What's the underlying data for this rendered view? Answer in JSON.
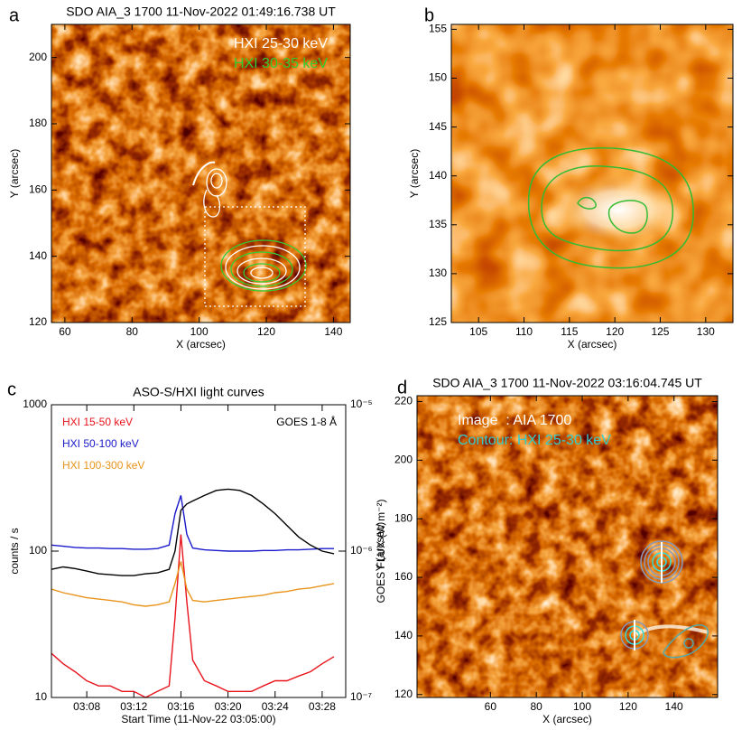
{
  "chart_data": [
    {
      "type": "image",
      "panel": "a",
      "title": "SDO AIA_3 1700 11-Nov-2022 01:49:16.738 UT",
      "xlabel": "X (arcsec)",
      "ylabel": "Y (arcsec)",
      "xlim": [
        56,
        145
      ],
      "ylim": [
        120,
        210
      ],
      "xticks": [
        60,
        80,
        100,
        120,
        140
      ],
      "yticks": [
        120,
        140,
        160,
        180,
        200
      ],
      "legend": [
        {
          "name": "HXI 25-30 keV",
          "color": "#ffffff"
        },
        {
          "name": "HXI 30-35 keV",
          "color": "#33cc33"
        }
      ]
    },
    {
      "type": "image",
      "panel": "b",
      "xlabel": "X (arcsec)",
      "ylabel": "Y (arcsec)",
      "xlim": [
        102,
        133
      ],
      "ylim": [
        125,
        155.5
      ],
      "xticks": [
        105,
        110,
        115,
        120,
        125,
        130
      ],
      "yticks": [
        125,
        130,
        135,
        140,
        145,
        150,
        155
      ]
    },
    {
      "type": "line",
      "panel": "c",
      "title": "ASO-S/HXI light curves",
      "xlabel": "Start Time (11-Nov-22 03:05:00)",
      "ylabel": "counts / s",
      "y2label": "GOES FLUX (W m⁻²)",
      "log": true,
      "x": [
        "03:05",
        "03:06",
        "03:07",
        "03:08",
        "03:09",
        "03:10",
        "03:11",
        "03:12",
        "03:13",
        "03:14",
        "03:15",
        "03:15:30",
        "03:16",
        "03:16:30",
        "03:17",
        "03:18",
        "03:19",
        "03:20",
        "03:21",
        "03:22",
        "03:23",
        "03:24",
        "03:25",
        "03:26",
        "03:27",
        "03:28",
        "03:29"
      ],
      "xlim": [
        "03:05",
        "03:30"
      ],
      "xticks": [
        "03:08",
        "03:12",
        "03:16",
        "03:20",
        "03:24",
        "03:28"
      ],
      "ylim": [
        10,
        1000
      ],
      "yticks": [
        10,
        100,
        1000
      ],
      "y2lim": [
        1e-07,
        1e-05
      ],
      "y2ticks": [
        {
          "value": 1e-07,
          "label": "10⁻⁷"
        },
        {
          "value": 1e-06,
          "label": "10⁻⁶"
        },
        {
          "value": 1e-05,
          "label": "10⁻⁵"
        }
      ],
      "series": [
        {
          "name": "HXI 15-50 keV",
          "color": "#e8141c",
          "values": [
            20,
            17,
            15,
            13,
            12,
            12,
            11,
            11,
            10,
            11,
            12,
            35,
            130,
            45,
            18,
            13,
            12,
            11,
            11,
            11,
            12,
            13,
            13,
            14,
            15,
            17,
            19
          ]
        },
        {
          "name": "HXI 50-100 keV",
          "color": "#1a1acc",
          "values": [
            110,
            108,
            106,
            105,
            105,
            104,
            104,
            103,
            103,
            104,
            110,
            180,
            240,
            130,
            105,
            102,
            101,
            100,
            100,
            100,
            101,
            101,
            102,
            102,
            103,
            104,
            104
          ]
        },
        {
          "name": "HXI 100-300 keV",
          "color": "#e8941c",
          "values": [
            55,
            52,
            50,
            48,
            47,
            46,
            45,
            43,
            42,
            43,
            45,
            60,
            85,
            55,
            46,
            45,
            46,
            47,
            48,
            49,
            50,
            52,
            53,
            55,
            56,
            58,
            60
          ]
        },
        {
          "name": "GOES 1-8 Å",
          "color": "#000000",
          "axis": "y2",
          "values": [
            7.5e-07,
            7.8e-07,
            7.6e-07,
            7.3e-07,
            7e-07,
            6.9e-07,
            6.8e-07,
            6.8e-07,
            7e-07,
            7.1e-07,
            7.5e-07,
            1e-06,
            1.9e-06,
            2.1e-06,
            2.2e-06,
            2.4e-06,
            2.6e-06,
            2.65e-06,
            2.6e-06,
            2.4e-06,
            2.1e-06,
            1.8e-06,
            1.5e-06,
            1.25e-06,
            1.1e-06,
            1e-06,
            9.6e-07
          ]
        }
      ]
    },
    {
      "type": "image",
      "panel": "d",
      "title": "SDO AIA_3 1700 11-Nov-2022 03:16:04.745 UT",
      "xlabel": "X (arcsec)",
      "ylabel": "Y (arcsec)",
      "xlim": [
        28,
        159
      ],
      "ylim": [
        119,
        222
      ],
      "xticks": [
        60,
        80,
        100,
        120,
        140
      ],
      "yticks": [
        120,
        140,
        160,
        180,
        200,
        220
      ],
      "legend": [
        {
          "name": "Image  : AIA 1700",
          "color": "#ffffff"
        },
        {
          "name": "Contour: HXI 25-30 keV",
          "color": "#33cccc"
        }
      ]
    }
  ]
}
